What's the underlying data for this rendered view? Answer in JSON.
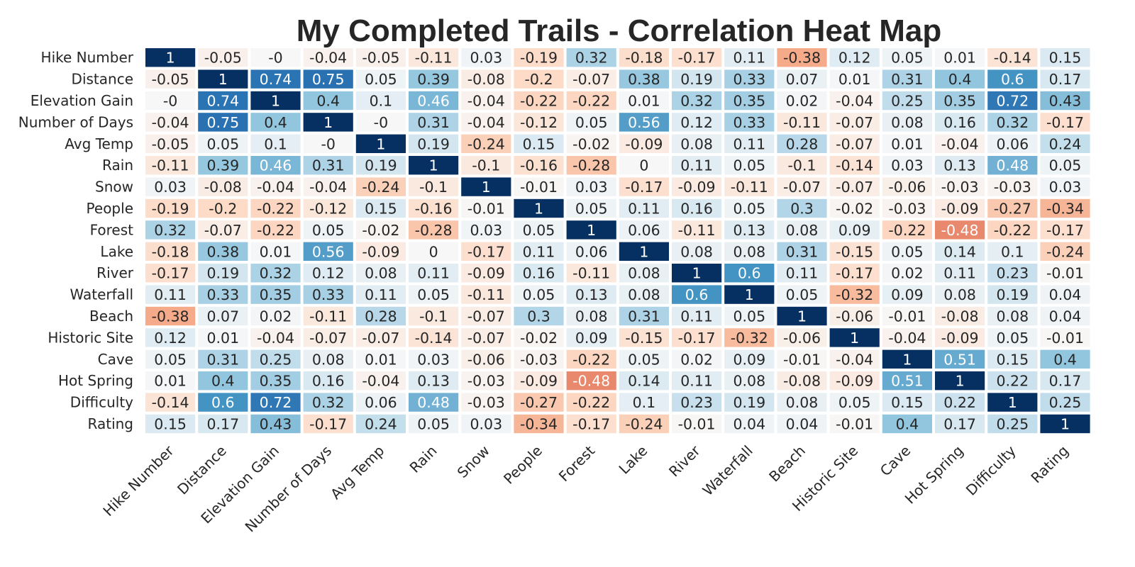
{
  "chart_data": {
    "type": "heatmap",
    "title": "My Completed Trails - Correlation Heat Map",
    "xlabel": "",
    "ylabel": "",
    "colormap": "RdBu",
    "value_range": [
      -1,
      1
    ],
    "grid": false,
    "labels": [
      "Hike Number",
      "Distance",
      "Elevation Gain",
      "Number of Days",
      "Avg Temp",
      "Rain",
      "Snow",
      "People",
      "Forest",
      "Lake",
      "River",
      "Waterfall",
      "Beach",
      "Historic Site",
      "Cave",
      "Hot Spring",
      "Difficulty",
      "Rating"
    ],
    "matrix": [
      [
        "1",
        "-0.05",
        "-0",
        "-0.04",
        "-0.05",
        "-0.11",
        "0.03",
        "-0.19",
        "0.32",
        "-0.18",
        "-0.17",
        "0.11",
        "-0.38",
        "0.12",
        "0.05",
        "0.01",
        "-0.14",
        "0.15"
      ],
      [
        "-0.05",
        "1",
        "0.74",
        "0.75",
        "0.05",
        "0.39",
        "-0.08",
        "-0.2",
        "-0.07",
        "0.38",
        "0.19",
        "0.33",
        "0.07",
        "0.01",
        "0.31",
        "0.4",
        "0.6",
        "0.17"
      ],
      [
        "-0",
        "0.74",
        "1",
        "0.4",
        "0.1",
        "0.46",
        "-0.04",
        "-0.22",
        "-0.22",
        "0.01",
        "0.32",
        "0.35",
        "0.02",
        "-0.04",
        "0.25",
        "0.35",
        "0.72",
        "0.43"
      ],
      [
        "-0.04",
        "0.75",
        "0.4",
        "1",
        "-0",
        "0.31",
        "-0.04",
        "-0.12",
        "0.05",
        "0.56",
        "0.12",
        "0.33",
        "-0.11",
        "-0.07",
        "0.08",
        "0.16",
        "0.32",
        "-0.17"
      ],
      [
        "-0.05",
        "0.05",
        "0.1",
        "-0",
        "1",
        "0.19",
        "-0.24",
        "0.15",
        "-0.02",
        "-0.09",
        "0.08",
        "0.11",
        "0.28",
        "-0.07",
        "0.01",
        "-0.04",
        "0.06",
        "0.24"
      ],
      [
        "-0.11",
        "0.39",
        "0.46",
        "0.31",
        "0.19",
        "1",
        "-0.1",
        "-0.16",
        "-0.28",
        "0",
        "0.11",
        "0.05",
        "-0.1",
        "-0.14",
        "0.03",
        "0.13",
        "0.48",
        "0.05"
      ],
      [
        "0.03",
        "-0.08",
        "-0.04",
        "-0.04",
        "-0.24",
        "-0.1",
        "1",
        "-0.01",
        "0.03",
        "-0.17",
        "-0.09",
        "-0.11",
        "-0.07",
        "-0.07",
        "-0.06",
        "-0.03",
        "-0.03",
        "0.03"
      ],
      [
        "-0.19",
        "-0.2",
        "-0.22",
        "-0.12",
        "0.15",
        "-0.16",
        "-0.01",
        "1",
        "0.05",
        "0.11",
        "0.16",
        "0.05",
        "0.3",
        "-0.02",
        "-0.03",
        "-0.09",
        "-0.27",
        "-0.34"
      ],
      [
        "0.32",
        "-0.07",
        "-0.22",
        "0.05",
        "-0.02",
        "-0.28",
        "0.03",
        "0.05",
        "1",
        "0.06",
        "-0.11",
        "0.13",
        "0.08",
        "0.09",
        "-0.22",
        "-0.48",
        "-0.22",
        "-0.17"
      ],
      [
        "-0.18",
        "0.38",
        "0.01",
        "0.56",
        "-0.09",
        "0",
        "-0.17",
        "0.11",
        "0.06",
        "1",
        "0.08",
        "0.08",
        "0.31",
        "-0.15",
        "0.05",
        "0.14",
        "0.1",
        "-0.24"
      ],
      [
        "-0.17",
        "0.19",
        "0.32",
        "0.12",
        "0.08",
        "0.11",
        "-0.09",
        "0.16",
        "-0.11",
        "0.08",
        "1",
        "0.6",
        "0.11",
        "-0.17",
        "0.02",
        "0.11",
        "0.23",
        "-0.01"
      ],
      [
        "0.11",
        "0.33",
        "0.35",
        "0.33",
        "0.11",
        "0.05",
        "-0.11",
        "0.05",
        "0.13",
        "0.08",
        "0.6",
        "1",
        "0.05",
        "-0.32",
        "0.09",
        "0.08",
        "0.19",
        "0.04"
      ],
      [
        "-0.38",
        "0.07",
        "0.02",
        "-0.11",
        "0.28",
        "-0.1",
        "-0.07",
        "0.3",
        "0.08",
        "0.31",
        "0.11",
        "0.05",
        "1",
        "-0.06",
        "-0.01",
        "-0.08",
        "0.08",
        "0.04"
      ],
      [
        "0.12",
        "0.01",
        "-0.04",
        "-0.07",
        "-0.07",
        "-0.14",
        "-0.07",
        "-0.02",
        "0.09",
        "-0.15",
        "-0.17",
        "-0.32",
        "-0.06",
        "1",
        "-0.04",
        "-0.09",
        "0.05",
        "-0.01"
      ],
      [
        "0.05",
        "0.31",
        "0.25",
        "0.08",
        "0.01",
        "0.03",
        "-0.06",
        "-0.03",
        "-0.22",
        "0.05",
        "0.02",
        "0.09",
        "-0.01",
        "-0.04",
        "1",
        "0.51",
        "0.15",
        "0.4"
      ],
      [
        "0.01",
        "0.4",
        "0.35",
        "0.16",
        "-0.04",
        "0.13",
        "-0.03",
        "-0.09",
        "-0.48",
        "0.14",
        "0.11",
        "0.08",
        "-0.08",
        "-0.09",
        "0.51",
        "1",
        "0.22",
        "0.17"
      ],
      [
        "-0.14",
        "0.6",
        "0.72",
        "0.32",
        "0.06",
        "0.48",
        "-0.03",
        "-0.27",
        "-0.22",
        "0.1",
        "0.23",
        "0.19",
        "0.08",
        "0.05",
        "0.15",
        "0.22",
        "1",
        "0.25"
      ],
      [
        "0.15",
        "0.17",
        "0.43",
        "-0.17",
        "0.24",
        "0.05",
        "0.03",
        "-0.34",
        "-0.17",
        "-0.24",
        "-0.01",
        "0.04",
        "0.04",
        "-0.01",
        "0.4",
        "0.17",
        "0.25",
        "1"
      ]
    ]
  }
}
